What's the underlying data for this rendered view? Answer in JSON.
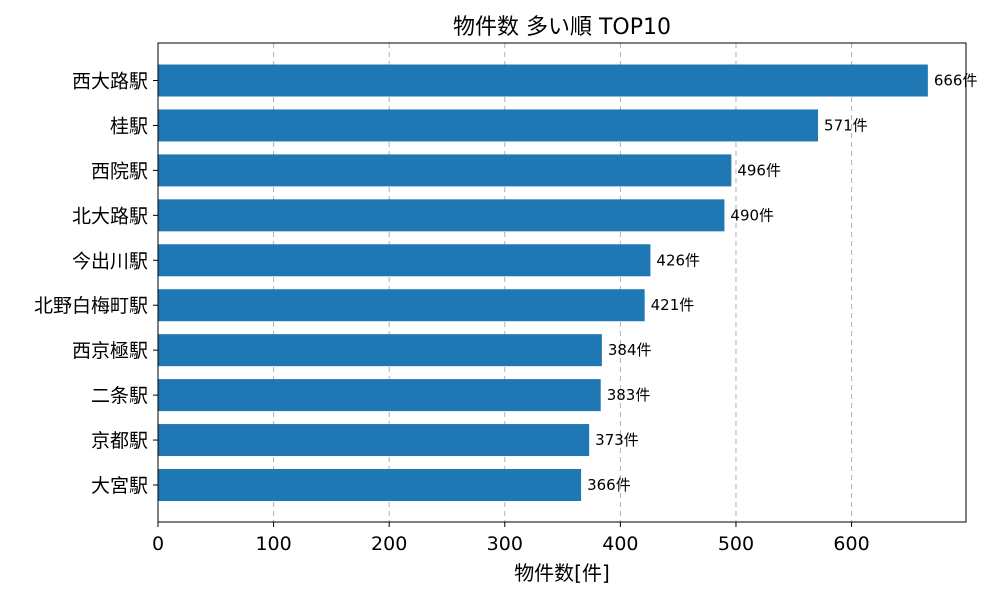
{
  "chart_data": {
    "type": "bar",
    "orientation": "horizontal",
    "title": "物件数 多い順 TOP10",
    "xlabel": "物件数[件]",
    "ylabel": "",
    "categories": [
      "西大路駅",
      "桂駅",
      "西院駅",
      "北大路駅",
      "今出川駅",
      "北野白梅町駅",
      "西京極駅",
      "二条駅",
      "京都駅",
      "大宮駅"
    ],
    "values": [
      666,
      571,
      496,
      490,
      426,
      421,
      384,
      383,
      373,
      366
    ],
    "data_labels": [
      "666件",
      "571件",
      "496件",
      "490件",
      "426件",
      "421件",
      "384件",
      "383件",
      "373件",
      "366件"
    ],
    "xlim": [
      0,
      699
    ],
    "xticks": [
      0,
      100,
      200,
      300,
      400,
      500,
      600
    ],
    "xtick_labels": [
      "0",
      "100",
      "200",
      "300",
      "400",
      "500",
      "600"
    ],
    "grid": "x-dashed",
    "bar_color": "#1f77b4"
  }
}
